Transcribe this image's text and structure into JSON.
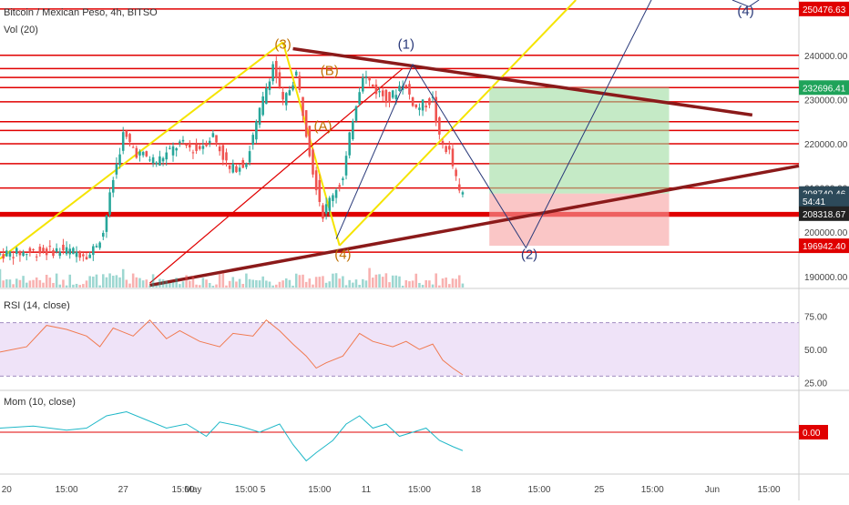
{
  "header": {
    "symbol_line": "Bitcoin / Mexican Peso, 4h, BITSO",
    "vol_label": "Vol (20)",
    "rsi_label": "RSI (14, close)",
    "mom_label": "Mom (10, close)"
  },
  "colors": {
    "bull": "#26a69a",
    "bear": "#ef5350",
    "support": "#e00000",
    "trendline": "#8b1a1a",
    "yellow": "#f5e400",
    "wave_orange": "#c07000",
    "wave_navy": "#2a3a7a",
    "rsi_line": "#f07a50",
    "rsi_band": "#e8d7f5",
    "mom_line": "#20b8c8",
    "target_green": "#9fdca0",
    "stop_red": "#f6a0a0"
  },
  "chart_data": [
    {
      "type": "candlestick",
      "title": "Bitcoin / Mexican Peso, 4h, BITSO",
      "y_axis_ticks": [
        190000,
        200000,
        210000,
        220000,
        230000,
        240000
      ],
      "y_tick_labels": [
        "190000.00",
        "200000.00",
        "210000.00",
        "220000.00",
        "230000.00",
        "240000.00"
      ],
      "x_tick_labels": [
        "20",
        "15:00",
        "27",
        "15:00",
        "May",
        "15:00",
        "5",
        "15:00",
        "11",
        "15:00",
        "18",
        "15:00",
        "25",
        "15:00",
        "Jun",
        "15:00"
      ],
      "ylim": [
        187500,
        252500
      ],
      "price_tags": [
        {
          "label": "250476.63",
          "value": 250476.63,
          "color": "#e00000"
        },
        {
          "label": "232696.41",
          "value": 232696.41,
          "color": "#1fa35a"
        },
        {
          "label": "208740.46",
          "value": 208740.46,
          "color": "#2d4a5a"
        },
        {
          "label": "54:41",
          "value": 207000,
          "color": "#2d4a5a"
        },
        {
          "label": "208318.67",
          "value": 204200,
          "color": "#222222"
        },
        {
          "label": "196942.40",
          "value": 196942.4,
          "color": "#e00000"
        }
      ],
      "price_path": [
        [
          0,
          195000
        ],
        [
          10,
          195500
        ],
        [
          20,
          196000
        ],
        [
          28,
          195000
        ],
        [
          32,
          200000
        ],
        [
          35,
          212000
        ],
        [
          38,
          222000
        ],
        [
          42,
          218000
        ],
        [
          48,
          216000
        ],
        [
          55,
          220000
        ],
        [
          60,
          218500
        ],
        [
          65,
          222000
        ],
        [
          70,
          214000
        ],
        [
          75,
          216000
        ],
        [
          80,
          230000
        ],
        [
          83,
          238000
        ],
        [
          86,
          229000
        ],
        [
          90,
          236000
        ],
        [
          95,
          214000
        ],
        [
          98,
          204000
        ],
        [
          101,
          209000
        ],
        [
          104,
          212000
        ],
        [
          107,
          226000
        ],
        [
          110,
          236000
        ],
        [
          114,
          232000
        ],
        [
          118,
          230000
        ],
        [
          122,
          234000
        ],
        [
          126,
          228000
        ],
        [
          131,
          230000
        ],
        [
          133,
          221000
        ],
        [
          136,
          218000
        ],
        [
          139,
          208740
        ]
      ],
      "waves": [
        {
          "label": "(3)",
          "color": "orange"
        },
        {
          "label": "(B)",
          "color": "orange"
        },
        {
          "label": "(A)",
          "color": "orange"
        },
        {
          "label": "(4)",
          "color": "orange"
        },
        {
          "label": "(1)",
          "color": "navy"
        },
        {
          "label": "(2)",
          "color": "navy"
        },
        {
          "label": "(4)",
          "color": "navy"
        }
      ]
    },
    {
      "type": "line",
      "title": "RSI (14, close)",
      "y_tick_labels": [
        "75.00",
        "50.00",
        "25.00"
      ],
      "ylim": [
        20,
        95
      ],
      "band": [
        30,
        70
      ],
      "values": [
        [
          0,
          48
        ],
        [
          8,
          52
        ],
        [
          14,
          68
        ],
        [
          20,
          65
        ],
        [
          26,
          60
        ],
        [
          30,
          52
        ],
        [
          34,
          66
        ],
        [
          40,
          60
        ],
        [
          45,
          72
        ],
        [
          50,
          58
        ],
        [
          54,
          64
        ],
        [
          60,
          56
        ],
        [
          66,
          52
        ],
        [
          70,
          62
        ],
        [
          76,
          60
        ],
        [
          80,
          72
        ],
        [
          84,
          64
        ],
        [
          88,
          54
        ],
        [
          92,
          45
        ],
        [
          95,
          36
        ],
        [
          98,
          40
        ],
        [
          103,
          45
        ],
        [
          108,
          62
        ],
        [
          112,
          56
        ],
        [
          118,
          52
        ],
        [
          122,
          56
        ],
        [
          126,
          50
        ],
        [
          130,
          54
        ],
        [
          133,
          42
        ],
        [
          136,
          36
        ],
        [
          139,
          31
        ]
      ]
    },
    {
      "type": "line",
      "title": "Mom (10, close)",
      "y_tick_labels": [
        "0.00"
      ],
      "ylim": [
        -20,
        20
      ],
      "values": [
        [
          0,
          2
        ],
        [
          10,
          3
        ],
        [
          20,
          1
        ],
        [
          26,
          2
        ],
        [
          32,
          8
        ],
        [
          38,
          10
        ],
        [
          44,
          6
        ],
        [
          50,
          2
        ],
        [
          56,
          4
        ],
        [
          62,
          -2
        ],
        [
          66,
          5
        ],
        [
          72,
          3
        ],
        [
          78,
          0
        ],
        [
          84,
          4
        ],
        [
          88,
          -6
        ],
        [
          92,
          -14
        ],
        [
          95,
          -10
        ],
        [
          100,
          -4
        ],
        [
          104,
          4
        ],
        [
          108,
          8
        ],
        [
          112,
          2
        ],
        [
          116,
          4
        ],
        [
          120,
          -2
        ],
        [
          124,
          0
        ],
        [
          128,
          2
        ],
        [
          132,
          -4
        ],
        [
          136,
          -7
        ],
        [
          139,
          -9
        ]
      ]
    }
  ]
}
